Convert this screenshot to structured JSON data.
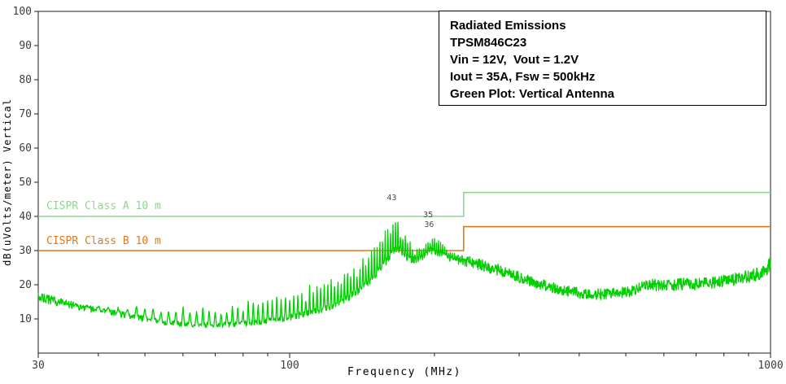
{
  "title_box": {
    "lines": [
      "Radiated Emissions",
      "TPSM846C23",
      "Vin = 12V,  Vout = 1.2V",
      "Iout = 35A, Fsw = 500kHz",
      "Green Plot: Vertical Antenna"
    ]
  },
  "colors": {
    "background": "#ffffff",
    "axis_text": "#3d3d3d",
    "axis_line": "#1c1c1c",
    "trace_green": "#00cf00",
    "class_a_green": "#90d690",
    "class_b_orange": "#e0791c",
    "annotation": "#4a4a4a",
    "info_text": "#000000"
  },
  "chart_data": {
    "type": "line",
    "title": "Radiated Emissions",
    "xlabel": "Frequency (MHz)",
    "ylabel": "dB(uVolts/meter) Vertical",
    "x_scale": "log",
    "xlim": [
      30,
      1000
    ],
    "ylim": [
      0,
      100
    ],
    "y_ticks": [
      10,
      20,
      30,
      40,
      50,
      60,
      70,
      80,
      90,
      100
    ],
    "x_ticks": [
      30,
      100,
      1000
    ],
    "x_minor_ticks": [
      40,
      50,
      60,
      70,
      80,
      90,
      200,
      300,
      400,
      500,
      600,
      700,
      800,
      900
    ],
    "grid": false,
    "limits": [
      {
        "name": "CISPR Class A 10 m",
        "color": "#90d690",
        "points": [
          [
            30,
            40
          ],
          [
            230,
            40
          ],
          [
            230,
            47
          ],
          [
            1000,
            47
          ]
        ]
      },
      {
        "name": "CISPR Class B 10 m",
        "color": "#e0791c",
        "points": [
          [
            30,
            30
          ],
          [
            230,
            30
          ],
          [
            230,
            37
          ],
          [
            1000,
            37
          ]
        ]
      }
    ],
    "series": [
      {
        "name": "Radiated emissions, vertical antenna",
        "color": "#00cf00",
        "comb_spacing_mhz": 2.0,
        "envelope_note": "points are [freq_MHz, base_dB, comb_spike_amp_dB, noise_halfband_dB]",
        "envelope": [
          [
            30,
            16.5,
            0,
            1.3
          ],
          [
            34,
            14.5,
            0,
            1.2
          ],
          [
            38,
            13,
            0.8,
            1.0
          ],
          [
            42,
            12,
            2.2,
            0.9
          ],
          [
            46,
            11,
            3.2,
            0.9
          ],
          [
            50,
            10,
            4.2,
            0.9
          ],
          [
            55,
            9,
            5.0,
            0.8
          ],
          [
            60,
            8.5,
            5.6,
            0.8
          ],
          [
            65,
            8.2,
            6.2,
            0.8
          ],
          [
            70,
            8.2,
            6.6,
            0.8
          ],
          [
            80,
            8.6,
            7.2,
            0.8
          ],
          [
            90,
            9.4,
            7.8,
            0.8
          ],
          [
            100,
            10.4,
            8.2,
            0.9
          ],
          [
            110,
            11.8,
            8.8,
            0.9
          ],
          [
            120,
            13.2,
            9.2,
            0.9
          ],
          [
            130,
            15.5,
            9.8,
            1.0
          ],
          [
            140,
            18.5,
            10.2,
            1.0
          ],
          [
            150,
            22.5,
            10.8,
            1.0
          ],
          [
            158,
            26.5,
            11.5,
            1.1
          ],
          [
            165,
            30.5,
            12.2,
            1.1
          ],
          [
            170,
            30,
            10,
            1.1
          ],
          [
            176,
            28,
            7,
            1.1
          ],
          [
            182,
            27,
            4.5,
            1.1
          ],
          [
            188,
            28,
            4.8,
            1.1
          ],
          [
            196,
            30.2,
            5.2,
            1.1
          ],
          [
            204,
            29.5,
            4.5,
            1.1
          ],
          [
            212,
            28,
            3.5,
            1.2
          ],
          [
            222,
            27.3,
            2,
            1.4
          ],
          [
            232,
            27,
            0.5,
            1.7
          ],
          [
            250,
            25.8,
            0,
            1.7
          ],
          [
            270,
            24.5,
            0,
            1.7
          ],
          [
            300,
            22.2,
            0,
            1.7
          ],
          [
            330,
            20.3,
            0,
            1.6
          ],
          [
            360,
            18.8,
            0,
            1.6
          ],
          [
            400,
            17.6,
            0,
            1.6
          ],
          [
            440,
            17.2,
            0,
            1.6
          ],
          [
            480,
            17.5,
            0,
            1.6
          ],
          [
            520,
            18.2,
            0,
            1.6
          ],
          [
            560,
            20.3,
            0,
            1.7
          ],
          [
            590,
            19.6,
            0,
            1.7
          ],
          [
            620,
            19.9,
            0,
            1.7
          ],
          [
            660,
            20.3,
            0,
            1.7
          ],
          [
            700,
            20.1,
            0,
            1.7
          ],
          [
            750,
            20.6,
            0,
            1.7
          ],
          [
            800,
            21.1,
            0,
            1.8
          ],
          [
            850,
            21.7,
            0,
            1.8
          ],
          [
            900,
            22.4,
            0,
            1.9
          ],
          [
            950,
            23.3,
            0,
            2.0
          ],
          [
            1000,
            25.8,
            0,
            2.2
          ]
        ]
      }
    ],
    "annotations": [
      {
        "text": "43",
        "freq": 163,
        "db": 44.8
      },
      {
        "text": "35",
        "freq": 194,
        "db": 39.8
      },
      {
        "text": "36",
        "freq": 195,
        "db": 36.9
      }
    ],
    "legend_position": "none"
  }
}
